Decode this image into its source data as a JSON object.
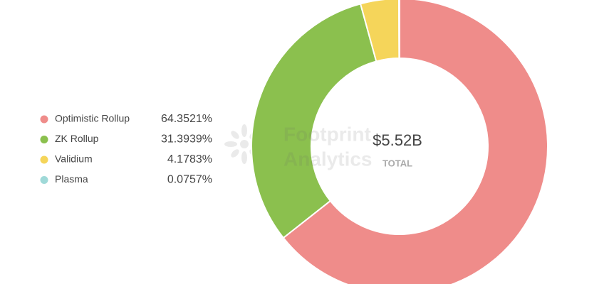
{
  "chart_data": {
    "type": "donut",
    "categories": [
      "Optimistic Rollup",
      "ZK Rollup",
      "Validium",
      "Plasma"
    ],
    "values": [
      64.3521,
      31.3939,
      4.1783,
      0.0757
    ],
    "value_labels": [
      "64.3521%",
      "31.3939%",
      "4.1783%",
      "0.0757%"
    ],
    "colors": [
      "#ef8c8a",
      "#8bc04e",
      "#f5d55a",
      "#9fd9d8"
    ],
    "center_value": "$5.52B",
    "center_label": "TOTAL",
    "watermark": [
      "Footprint",
      "Analytics"
    ],
    "legend": "left"
  }
}
